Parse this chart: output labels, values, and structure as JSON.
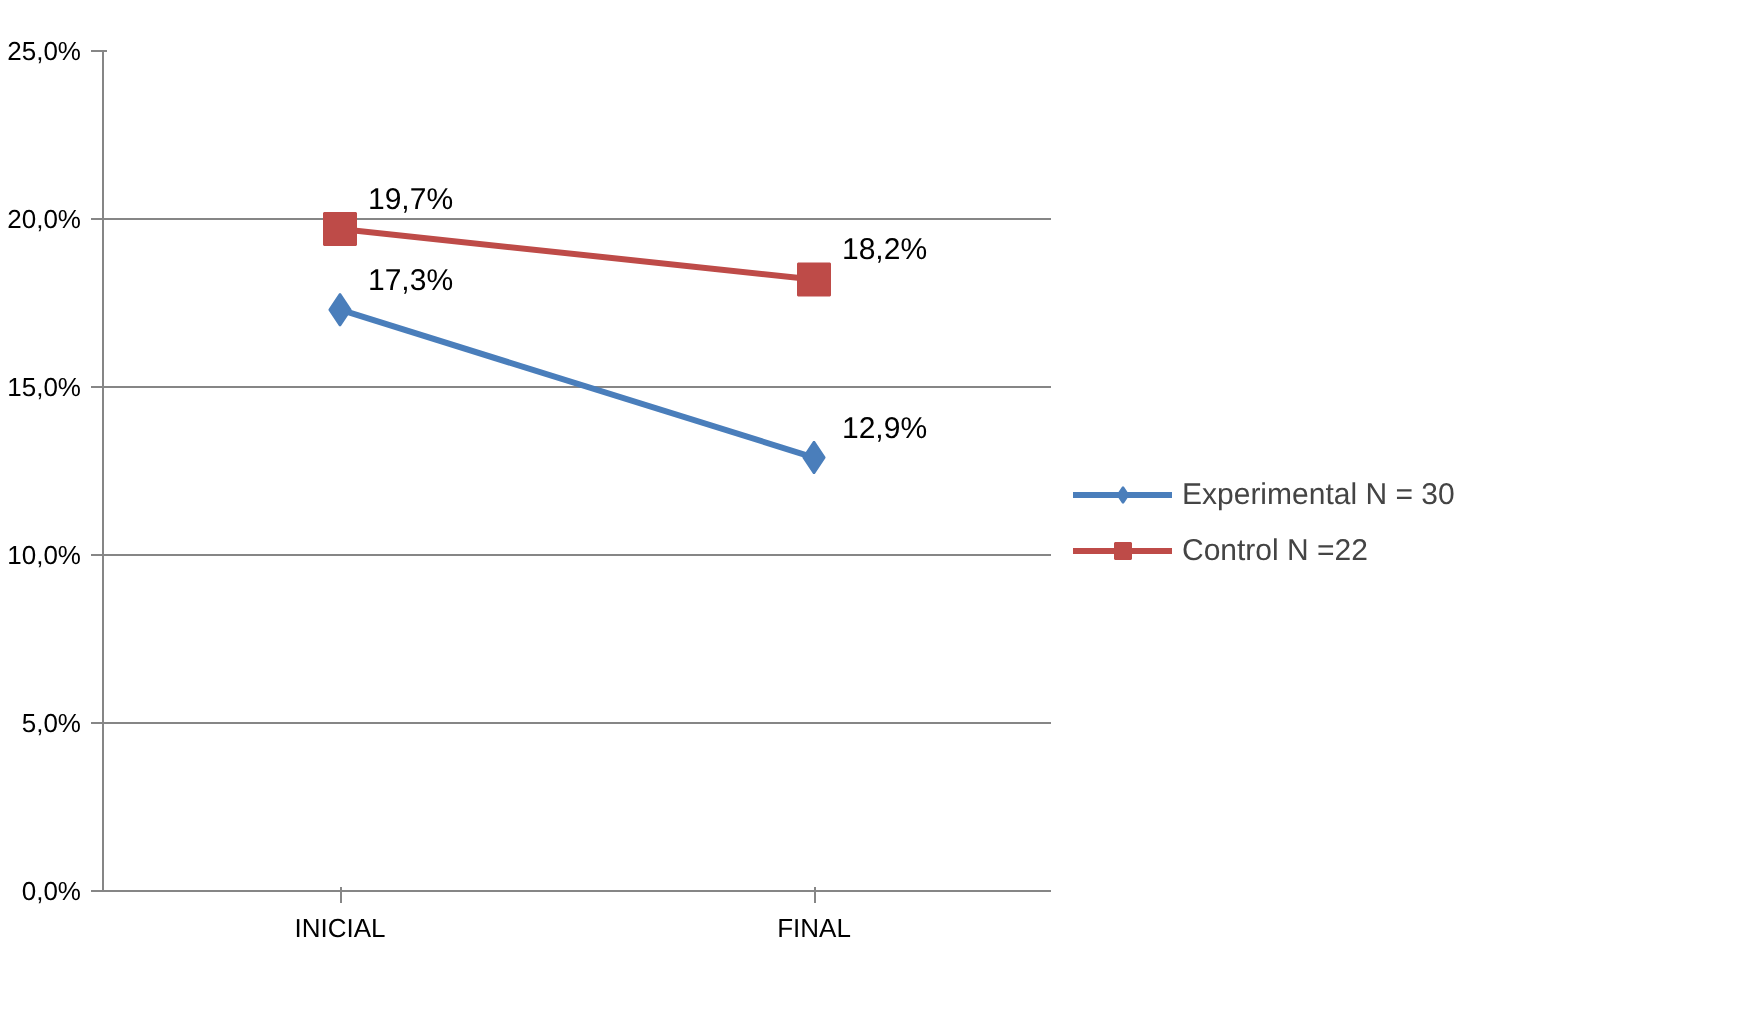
{
  "chart_data": {
    "type": "line",
    "categories": [
      "INICIAL",
      "FINAL"
    ],
    "series": [
      {
        "name": "Experimental N = 30",
        "color": "#4a7ebb",
        "values": [
          17.3,
          12.9
        ],
        "marker": "diamond",
        "value_labels": [
          "17,3%",
          "12,9%"
        ]
      },
      {
        "name": "Control N =22",
        "color": "#be4b48",
        "values": [
          19.7,
          18.2
        ],
        "marker": "square",
        "value_labels": [
          "19,7%",
          "18,2%"
        ]
      }
    ],
    "ylim": [
      0,
      25
    ],
    "yticks": [
      {
        "value": 0,
        "label": "0,0%"
      },
      {
        "value": 5,
        "label": "5,0%"
      },
      {
        "value": 10,
        "label": "10,0%"
      },
      {
        "value": 15,
        "label": "15,0%"
      },
      {
        "value": 20,
        "label": "20,0%"
      },
      {
        "value": 25,
        "label": "25,0%"
      }
    ],
    "grid": "y",
    "legend": "right"
  }
}
